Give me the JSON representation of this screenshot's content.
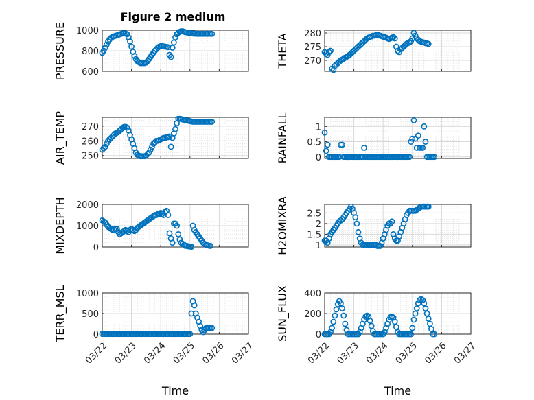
{
  "figure": {
    "title": "Figure 2 medium"
  },
  "colors": {
    "marker": "#0072BD",
    "grid": "#d9d9d9",
    "axis": "#262626"
  },
  "x_ticks": [
    "03/22",
    "03/23",
    "03/24",
    "03/25",
    "03/26",
    "03/27"
  ],
  "chart_data": [
    {
      "type": "scatter",
      "ylabel": "PRESSURE",
      "title": "Figure 2 medium",
      "ylim": [
        600,
        1000
      ],
      "yticks": [
        600,
        800,
        1000
      ],
      "xlabel": "",
      "x": [
        0.0,
        0.05,
        0.1,
        0.15,
        0.2,
        0.25,
        0.3,
        0.35,
        0.4,
        0.45,
        0.5,
        0.55,
        0.6,
        0.65,
        0.7,
        0.75,
        0.8,
        0.85,
        0.9,
        0.95,
        1.0,
        1.05,
        1.1,
        1.15,
        1.2,
        1.25,
        1.3,
        1.35,
        1.4,
        1.45,
        1.5,
        1.55,
        1.6,
        1.65,
        1.7,
        1.75,
        1.8,
        1.85,
        1.9,
        1.95,
        2.0,
        2.05,
        2.1,
        2.15,
        2.2,
        2.25,
        2.3,
        2.35,
        2.4,
        2.45,
        2.5,
        2.55,
        2.6,
        2.65,
        2.7,
        2.75,
        2.8,
        2.85,
        2.9,
        2.95,
        3.0,
        3.05,
        3.1,
        3.15,
        3.2,
        3.25,
        3.3,
        3.35,
        3.4,
        3.45,
        3.5,
        3.55,
        3.6,
        3.65,
        3.7,
        3.75
      ],
      "y": [
        780,
        800,
        830,
        860,
        890,
        910,
        925,
        935,
        940,
        945,
        950,
        955,
        960,
        965,
        970,
        970,
        968,
        960,
        930,
        890,
        840,
        790,
        750,
        720,
        700,
        690,
        680,
        680,
        680,
        680,
        685,
        700,
        720,
        740,
        760,
        780,
        800,
        815,
        830,
        840,
        845,
        845,
        842,
        840,
        838,
        835,
        760,
        740,
        830,
        880,
        930,
        960,
        975,
        985,
        990,
        990,
        985,
        980,
        978,
        975,
        972,
        970,
        968,
        967,
        966,
        965,
        965,
        965,
        965,
        965,
        965,
        965,
        965,
        965,
        965,
        965
      ]
    },
    {
      "type": "scatter",
      "ylabel": "THETA",
      "ylim": [
        266,
        281
      ],
      "yticks": [
        270,
        275,
        280
      ],
      "xlabel": "",
      "x": [
        0.0,
        0.05,
        0.1,
        0.15,
        0.2,
        0.25,
        0.3,
        0.35,
        0.4,
        0.45,
        0.5,
        0.55,
        0.6,
        0.65,
        0.7,
        0.75,
        0.8,
        0.85,
        0.9,
        0.95,
        1.0,
        1.05,
        1.1,
        1.15,
        1.2,
        1.25,
        1.3,
        1.35,
        1.4,
        1.45,
        1.5,
        1.55,
        1.6,
        1.65,
        1.7,
        1.75,
        1.8,
        1.85,
        1.9,
        1.95,
        2.0,
        2.05,
        2.1,
        2.15,
        2.2,
        2.25,
        2.3,
        2.35,
        2.4,
        2.45,
        2.5,
        2.55,
        2.6,
        2.65,
        2.7,
        2.75,
        2.8,
        2.85,
        2.9,
        2.95,
        3.0,
        3.05,
        3.1,
        3.15,
        3.2,
        3.25,
        3.3,
        3.35,
        3.4,
        3.45,
        3.5,
        3.55
      ],
      "y": [
        273,
        272.5,
        272,
        273,
        273.5,
        267,
        266.5,
        268,
        268.5,
        269,
        269.5,
        270,
        270.3,
        270.6,
        271,
        271.3,
        271.6,
        272,
        272.5,
        273,
        273.5,
        274,
        274.5,
        275,
        275.5,
        276,
        276.5,
        277,
        277.5,
        278,
        278.3,
        278.5,
        278.7,
        279,
        279,
        279.2,
        279.3,
        279.2,
        279,
        278.8,
        278.6,
        278.5,
        278.3,
        278,
        277.8,
        278,
        278.3,
        278.5,
        278,
        275,
        273.5,
        273,
        274,
        274.5,
        275,
        275.5,
        276,
        276.3,
        276.5,
        277,
        278,
        280,
        279,
        278,
        277.5,
        277,
        276.8,
        276.6,
        276.5,
        276.3,
        276.2,
        276
      ]
    },
    {
      "type": "scatter",
      "ylabel": "AIR_TEMP",
      "ylim": [
        248,
        276
      ],
      "yticks": [
        250,
        260,
        270
      ],
      "xlabel": "",
      "x": [
        0.0,
        0.05,
        0.1,
        0.15,
        0.2,
        0.25,
        0.3,
        0.35,
        0.4,
        0.45,
        0.5,
        0.55,
        0.6,
        0.65,
        0.7,
        0.75,
        0.8,
        0.85,
        0.9,
        0.95,
        1.0,
        1.05,
        1.1,
        1.15,
        1.2,
        1.25,
        1.3,
        1.35,
        1.4,
        1.45,
        1.5,
        1.55,
        1.6,
        1.65,
        1.7,
        1.75,
        1.8,
        1.85,
        1.9,
        1.95,
        2.0,
        2.05,
        2.1,
        2.15,
        2.2,
        2.25,
        2.3,
        2.35,
        2.4,
        2.45,
        2.5,
        2.55,
        2.6,
        2.65,
        2.7,
        2.75,
        2.8,
        2.85,
        2.9,
        2.95,
        3.0,
        3.05,
        3.1,
        3.15,
        3.2,
        3.25,
        3.3,
        3.35,
        3.4,
        3.45,
        3.5,
        3.55,
        3.6,
        3.65,
        3.7,
        3.75
      ],
      "y": [
        254,
        255,
        256,
        258,
        260,
        261,
        262,
        263,
        264,
        265,
        265.5,
        266,
        267,
        268,
        269,
        269.5,
        269.5,
        269,
        267,
        264,
        261,
        258,
        255,
        252,
        250.5,
        250,
        249.5,
        249.5,
        249.5,
        249.5,
        250,
        251,
        252,
        254,
        256,
        258,
        259,
        260,
        260,
        260.5,
        261,
        261.5,
        262,
        262,
        262.5,
        262.5,
        263,
        256,
        262,
        265,
        268,
        272,
        275,
        275,
        274.8,
        274.5,
        274.3,
        274,
        273.8,
        273.6,
        273.4,
        273.2,
        273,
        273,
        273,
        273,
        273,
        273,
        273,
        273,
        273,
        273,
        273,
        273,
        273,
        273
      ]
    },
    {
      "type": "scatter",
      "ylabel": "RAINFALL",
      "ylim": [
        -0.05,
        1.3
      ],
      "yticks": [
        0,
        0.5,
        1
      ],
      "xlabel": "",
      "x": [
        0.0,
        0.05,
        0.1,
        0.15,
        0.2,
        0.25,
        0.3,
        0.35,
        0.4,
        0.45,
        0.5,
        0.55,
        0.6,
        0.65,
        0.7,
        0.75,
        0.8,
        0.85,
        0.9,
        0.95,
        1.0,
        1.05,
        1.1,
        1.15,
        1.2,
        1.25,
        1.3,
        1.35,
        1.4,
        1.45,
        1.5,
        1.55,
        1.6,
        1.65,
        1.7,
        1.75,
        1.8,
        1.85,
        1.9,
        1.95,
        2.0,
        2.05,
        2.1,
        2.15,
        2.2,
        2.25,
        2.3,
        2.35,
        2.4,
        2.45,
        2.5,
        2.55,
        2.6,
        2.65,
        2.7,
        2.75,
        2.8,
        2.85,
        2.9,
        2.95,
        3.0,
        3.05,
        3.1,
        3.15,
        3.2,
        3.25,
        3.3,
        3.35,
        3.4,
        3.45,
        3.5,
        3.55,
        3.6,
        3.65,
        3.7,
        3.75
      ],
      "y": [
        0.8,
        0.2,
        0.4,
        0,
        0,
        0,
        0,
        0,
        0,
        0,
        0,
        0.4,
        0.4,
        0,
        0,
        0,
        0,
        0,
        0,
        0,
        0,
        0,
        0,
        0,
        0,
        0,
        0,
        0.3,
        0,
        0,
        0,
        0,
        0,
        0,
        0,
        0,
        0,
        0,
        0,
        0,
        0,
        0,
        0,
        0,
        0,
        0,
        0,
        0,
        0,
        0,
        0,
        0,
        0,
        0,
        0,
        0,
        0,
        0,
        0,
        0.5,
        0.6,
        1.2,
        0.6,
        0.3,
        0.7,
        0.3,
        0.3,
        0.3,
        1.0,
        0.5,
        0,
        0,
        0,
        0,
        0,
        0
      ]
    },
    {
      "type": "scatter",
      "ylabel": "MIXDEPTH",
      "ylim": [
        0,
        2000
      ],
      "yticks": [
        0,
        1000,
        2000
      ],
      "xlabel": "",
      "x": [
        0.0,
        0.05,
        0.1,
        0.15,
        0.2,
        0.25,
        0.3,
        0.35,
        0.4,
        0.45,
        0.5,
        0.55,
        0.6,
        0.65,
        0.7,
        0.75,
        0.8,
        0.85,
        0.9,
        0.95,
        1.0,
        1.05,
        1.1,
        1.15,
        1.2,
        1.25,
        1.3,
        1.35,
        1.4,
        1.45,
        1.5,
        1.55,
        1.6,
        1.65,
        1.7,
        1.75,
        1.8,
        1.85,
        1.9,
        1.95,
        2.0,
        2.05,
        2.1,
        2.15,
        2.2,
        2.25,
        2.3,
        2.35,
        2.4,
        2.45,
        2.5,
        2.55,
        2.6,
        2.65,
        2.7,
        2.75,
        2.8,
        2.85,
        2.9,
        2.95,
        3.0,
        3.05,
        3.1,
        3.15,
        3.2,
        3.25,
        3.3,
        3.35,
        3.4,
        3.45,
        3.5,
        3.55,
        3.6,
        3.65,
        3.7
      ],
      "y": [
        1250,
        1200,
        1150,
        1050,
        950,
        900,
        850,
        800,
        820,
        850,
        850,
        700,
        600,
        650,
        700,
        750,
        800,
        750,
        700,
        800,
        850,
        800,
        750,
        800,
        900,
        950,
        1000,
        1050,
        1100,
        1150,
        1200,
        1250,
        1300,
        1350,
        1400,
        1450,
        1500,
        1500,
        1550,
        1550,
        1600,
        1550,
        1500,
        1650,
        1700,
        1500,
        650,
        400,
        200,
        1100,
        1100,
        1000,
        600,
        350,
        200,
        150,
        100,
        50,
        50,
        30,
        20,
        10,
        1000,
        800,
        700,
        600,
        500,
        400,
        300,
        200,
        150,
        100,
        80,
        60,
        50
      ]
    },
    {
      "type": "scatter",
      "ylabel": "H2OMIXRA",
      "ylim": [
        0.9,
        2.9
      ],
      "yticks": [
        1,
        1.5,
        2,
        2.5
      ],
      "xlabel": "",
      "x": [
        0.0,
        0.05,
        0.1,
        0.15,
        0.2,
        0.25,
        0.3,
        0.35,
        0.4,
        0.45,
        0.5,
        0.55,
        0.6,
        0.65,
        0.7,
        0.75,
        0.8,
        0.85,
        0.9,
        0.95,
        1.0,
        1.05,
        1.1,
        1.15,
        1.2,
        1.25,
        1.3,
        1.35,
        1.4,
        1.45,
        1.5,
        1.55,
        1.6,
        1.65,
        1.7,
        1.75,
        1.8,
        1.85,
        1.9,
        1.95,
        2.0,
        2.05,
        2.1,
        2.15,
        2.2,
        2.25,
        2.3,
        2.35,
        2.4,
        2.45,
        2.5,
        2.55,
        2.6,
        2.65,
        2.7,
        2.75,
        2.8,
        2.85,
        2.9,
        2.95,
        3.0,
        3.05,
        3.1,
        3.15,
        3.2,
        3.25,
        3.3,
        3.35,
        3.4,
        3.45,
        3.5,
        3.55
      ],
      "y": [
        1.2,
        1.2,
        1.1,
        1.3,
        1.5,
        1.6,
        1.7,
        1.8,
        1.9,
        2.0,
        2.1,
        2.15,
        2.2,
        2.3,
        2.4,
        2.5,
        2.6,
        2.7,
        2.8,
        2.7,
        2.5,
        2.3,
        2.0,
        1.6,
        1.3,
        1.1,
        1.0,
        1.0,
        1.0,
        1.0,
        1.0,
        1.0,
        1.0,
        1.0,
        1.0,
        1.0,
        0.95,
        0.95,
        0.95,
        1.1,
        1.3,
        1.5,
        1.7,
        1.9,
        2.0,
        2.0,
        2.1,
        1.5,
        1.3,
        1.2,
        1.2,
        1.4,
        1.6,
        1.8,
        2.0,
        2.2,
        2.4,
        2.5,
        2.6,
        2.6,
        2.6,
        2.6,
        2.6,
        2.65,
        2.7,
        2.75,
        2.8,
        2.8,
        2.8,
        2.8,
        2.8,
        2.8
      ]
    },
    {
      "type": "scatter",
      "ylabel": "TERR_MSL",
      "ylim": [
        0,
        1000
      ],
      "yticks": [
        0,
        500,
        1000
      ],
      "xlabel": "Time",
      "x": [
        0.0,
        0.05,
        0.1,
        0.15,
        0.2,
        0.25,
        0.3,
        0.35,
        0.4,
        0.45,
        0.5,
        0.55,
        0.6,
        0.65,
        0.7,
        0.75,
        0.8,
        0.85,
        0.9,
        0.95,
        1.0,
        1.05,
        1.1,
        1.15,
        1.2,
        1.25,
        1.3,
        1.35,
        1.4,
        1.45,
        1.5,
        1.55,
        1.6,
        1.65,
        1.7,
        1.75,
        1.8,
        1.85,
        1.9,
        1.95,
        2.0,
        2.05,
        2.1,
        2.15,
        2.2,
        2.25,
        2.3,
        2.35,
        2.4,
        2.45,
        2.5,
        2.55,
        2.6,
        2.65,
        2.7,
        2.75,
        2.8,
        2.85,
        2.9,
        2.95,
        3.0,
        3.05,
        3.1,
        3.15,
        3.2,
        3.25,
        3.3,
        3.35,
        3.4,
        3.45,
        3.5,
        3.55,
        3.6,
        3.65,
        3.7,
        3.75
      ],
      "y": [
        5,
        5,
        5,
        5,
        5,
        5,
        5,
        5,
        5,
        5,
        5,
        5,
        5,
        5,
        5,
        5,
        5,
        5,
        5,
        5,
        5,
        5,
        5,
        5,
        5,
        5,
        5,
        5,
        5,
        5,
        5,
        5,
        5,
        5,
        5,
        5,
        5,
        5,
        5,
        5,
        5,
        5,
        5,
        5,
        5,
        5,
        5,
        5,
        5,
        5,
        5,
        5,
        5,
        5,
        5,
        5,
        5,
        5,
        5,
        5,
        5,
        500,
        800,
        700,
        500,
        400,
        300,
        200,
        100,
        50,
        100,
        150,
        150,
        150,
        150,
        150
      ]
    },
    {
      "type": "scatter",
      "ylabel": "SUN_FLUX",
      "ylim": [
        0,
        400
      ],
      "yticks": [
        0,
        200,
        400
      ],
      "xlabel": "Time",
      "x": [
        0.0,
        0.05,
        0.1,
        0.15,
        0.2,
        0.25,
        0.3,
        0.35,
        0.4,
        0.45,
        0.5,
        0.55,
        0.6,
        0.65,
        0.7,
        0.75,
        0.8,
        0.85,
        0.9,
        0.95,
        1.0,
        1.05,
        1.1,
        1.15,
        1.2,
        1.25,
        1.3,
        1.35,
        1.4,
        1.45,
        1.5,
        1.55,
        1.6,
        1.65,
        1.7,
        1.75,
        1.8,
        1.85,
        1.9,
        1.95,
        2.0,
        2.05,
        2.1,
        2.15,
        2.2,
        2.25,
        2.3,
        2.35,
        2.4,
        2.45,
        2.5,
        2.55,
        2.6,
        2.65,
        2.7,
        2.75,
        2.8,
        2.85,
        2.9,
        2.95,
        3.0,
        3.05,
        3.1,
        3.15,
        3.2,
        3.25,
        3.3,
        3.35,
        3.4,
        3.45,
        3.5,
        3.55,
        3.6,
        3.65,
        3.7,
        3.75
      ],
      "y": [
        0,
        0,
        0,
        0,
        20,
        60,
        120,
        180,
        240,
        290,
        320,
        300,
        250,
        180,
        100,
        40,
        0,
        0,
        0,
        0,
        0,
        0,
        0,
        0,
        20,
        60,
        100,
        140,
        170,
        180,
        170,
        130,
        80,
        30,
        0,
        0,
        0,
        0,
        0,
        0,
        0,
        20,
        60,
        100,
        140,
        165,
        170,
        160,
        120,
        70,
        20,
        0,
        0,
        0,
        0,
        0,
        0,
        0,
        0,
        0,
        60,
        140,
        200,
        250,
        300,
        330,
        340,
        330,
        300,
        250,
        200,
        150,
        100,
        50,
        0,
        0
      ]
    }
  ]
}
